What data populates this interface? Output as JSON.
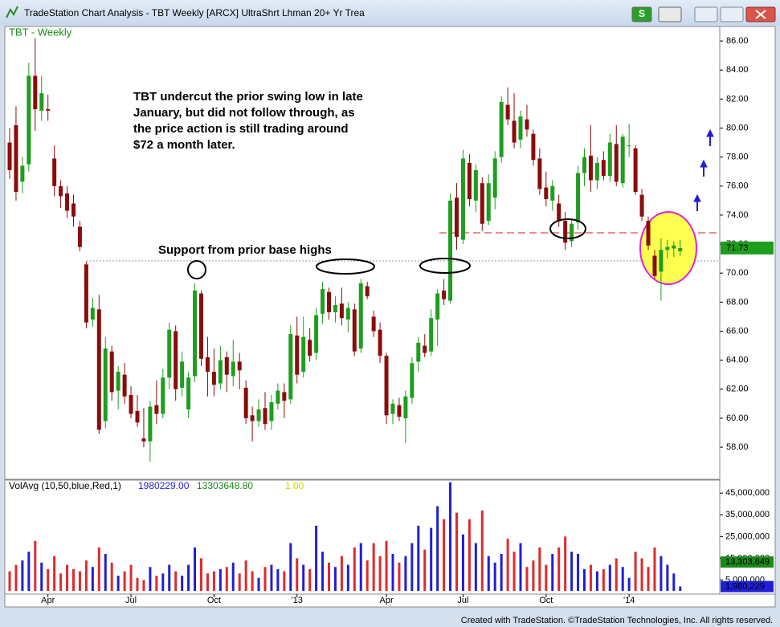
{
  "window": {
    "title": "TradeStation Chart Analysis - TBT Weekly [ARCX] UltraShrt Lhman 20+ Yr Trea",
    "button_s": "S",
    "footer": "Created with TradeStation. ©TradeStation Technologies, Inc. All rights reserved."
  },
  "chart_data": {
    "type": "candlestick",
    "title": "TBT - Weekly",
    "annotations": [
      "TBT undercut the prior swing low in late",
      "January, but did not follow through, as",
      "the price action is still trading around",
      "$72 a month later.",
      "Support from prior base highs"
    ],
    "up_color": "#1e9e1e",
    "down_color": "#8b0c0c",
    "ylim": [
      55.9,
      87.0
    ],
    "yticks": [
      {
        "value": 58,
        "label": "58.00"
      },
      {
        "value": 60,
        "label": "60.00"
      },
      {
        "value": 62,
        "label": "62.00"
      },
      {
        "value": 64,
        "label": "64.00"
      },
      {
        "value": 66,
        "label": "66.00"
      },
      {
        "value": 68,
        "label": "68.00"
      },
      {
        "value": 70,
        "label": "70.00"
      },
      {
        "value": 72,
        "label": "72.00"
      },
      {
        "value": 74,
        "label": "74.00"
      },
      {
        "value": 76,
        "label": "76.00"
      },
      {
        "value": 78,
        "label": "78.00"
      },
      {
        "value": 80,
        "label": "80.00"
      },
      {
        "value": 82,
        "label": "82.00"
      },
      {
        "value": 84,
        "label": "84.00"
      },
      {
        "value": 86,
        "label": "86.00"
      }
    ],
    "xticks": [
      {
        "value": 6,
        "label": "Apr"
      },
      {
        "value": 19,
        "label": "Jul"
      },
      {
        "value": 32,
        "label": "Oct"
      },
      {
        "value": 45,
        "label": "'13"
      },
      {
        "value": 59,
        "label": "Apr"
      },
      {
        "value": 71,
        "label": "Jul"
      },
      {
        "value": 84,
        "label": "Oct"
      },
      {
        "value": 97,
        "label": "'14"
      }
    ],
    "ohlc": [
      [
        79.0,
        80.0,
        76.5,
        77.1
      ],
      [
        80.2,
        81.5,
        75.0,
        75.6
      ],
      [
        76.3,
        78.0,
        75.5,
        77.4
      ],
      [
        77.5,
        84.5,
        77.0,
        83.6
      ],
      [
        83.6,
        86.2,
        79.8,
        81.3
      ],
      [
        81.2,
        83.6,
        80.5,
        82.4
      ],
      [
        81.3,
        82.3,
        80.5,
        81.2
      ],
      [
        77.9,
        78.8,
        75.3,
        76.0
      ],
      [
        76.0,
        76.4,
        74.5,
        75.3
      ],
      [
        75.5,
        76.0,
        73.8,
        74.3
      ],
      [
        74.8,
        75.4,
        73.2,
        73.9
      ],
      [
        73.2,
        73.6,
        71.5,
        71.8
      ],
      [
        70.6,
        70.8,
        66.2,
        66.6
      ],
      [
        66.8,
        68.3,
        66.3,
        67.6
      ],
      [
        67.5,
        68.5,
        58.9,
        59.2
      ],
      [
        59.8,
        65.6,
        59.3,
        64.8
      ],
      [
        64.6,
        65.0,
        61.2,
        61.8
      ],
      [
        61.9,
        63.6,
        60.6,
        63.2
      ],
      [
        63.0,
        63.8,
        61.0,
        61.5
      ],
      [
        61.6,
        62.2,
        60.0,
        60.3
      ],
      [
        60.5,
        61.6,
        59.4,
        59.7
      ],
      [
        58.6,
        60.7,
        58.0,
        58.4
      ],
      [
        58.4,
        61.2,
        57.0,
        60.8
      ],
      [
        60.9,
        62.6,
        59.6,
        60.3
      ],
      [
        60.3,
        63.4,
        60.0,
        62.8
      ],
      [
        62.8,
        66.6,
        62.0,
        66.1
      ],
      [
        66.0,
        66.4,
        61.2,
        62.0
      ],
      [
        62.1,
        64.6,
        61.5,
        63.9
      ],
      [
        60.6,
        63.2,
        60.0,
        62.8
      ],
      [
        62.9,
        69.3,
        62.5,
        68.8
      ],
      [
        68.6,
        68.8,
        63.6,
        64.1
      ],
      [
        64.2,
        65.6,
        61.5,
        63.2
      ],
      [
        63.2,
        64.8,
        61.5,
        62.3
      ],
      [
        62.4,
        65.0,
        62.0,
        64.0
      ],
      [
        64.2,
        64.6,
        61.8,
        63.0
      ],
      [
        62.9,
        65.4,
        62.2,
        63.9
      ],
      [
        63.9,
        64.5,
        62.0,
        63.3
      ],
      [
        62.1,
        62.6,
        59.6,
        60.0
      ],
      [
        60.2,
        60.8,
        58.4,
        59.8
      ],
      [
        59.8,
        61.3,
        59.4,
        60.6
      ],
      [
        60.7,
        61.8,
        59.2,
        59.6
      ],
      [
        59.8,
        61.6,
        59.2,
        61.1
      ],
      [
        61.0,
        62.4,
        60.6,
        61.9
      ],
      [
        61.8,
        62.4,
        60.0,
        61.2
      ],
      [
        61.3,
        66.4,
        61.0,
        65.8
      ],
      [
        65.7,
        67.0,
        62.4,
        63.0
      ],
      [
        63.2,
        67.0,
        62.8,
        65.6
      ],
      [
        65.4,
        66.2,
        63.9,
        64.3
      ],
      [
        64.5,
        67.6,
        64.0,
        67.1
      ],
      [
        67.2,
        69.4,
        66.5,
        68.9
      ],
      [
        68.7,
        69.0,
        66.8,
        67.3
      ],
      [
        67.3,
        68.4,
        66.6,
        67.8
      ],
      [
        67.9,
        69.0,
        66.4,
        66.9
      ],
      [
        66.8,
        68.0,
        65.9,
        67.6
      ],
      [
        67.5,
        67.9,
        64.3,
        64.6
      ],
      [
        64.8,
        69.6,
        64.5,
        69.3
      ],
      [
        69.1,
        69.4,
        68.2,
        68.4
      ],
      [
        67.0,
        67.4,
        65.6,
        66.0
      ],
      [
        66.1,
        66.6,
        63.8,
        64.3
      ],
      [
        64.3,
        64.5,
        59.6,
        60.2
      ],
      [
        60.3,
        61.3,
        59.6,
        61.0
      ],
      [
        60.9,
        61.4,
        59.8,
        60.1
      ],
      [
        60.0,
        61.9,
        58.3,
        61.5
      ],
      [
        61.4,
        64.2,
        61.0,
        63.8
      ],
      [
        63.9,
        65.6,
        63.2,
        65.2
      ],
      [
        65.0,
        65.8,
        64.2,
        64.5
      ],
      [
        64.6,
        67.5,
        64.3,
        66.9
      ],
      [
        66.8,
        68.9,
        65.0,
        68.6
      ],
      [
        68.8,
        69.6,
        67.8,
        68.2
      ],
      [
        68.1,
        75.5,
        67.9,
        75.0
      ],
      [
        75.2,
        76.2,
        71.6,
        72.5
      ],
      [
        72.3,
        78.5,
        72.0,
        77.9
      ],
      [
        77.6,
        78.2,
        74.6,
        75.1
      ],
      [
        75.0,
        77.5,
        74.2,
        77.1
      ],
      [
        76.2,
        76.6,
        72.9,
        73.4
      ],
      [
        73.6,
        76.8,
        73.3,
        76.2
      ],
      [
        75.2,
        78.4,
        74.4,
        77.9
      ],
      [
        78.0,
        82.2,
        77.6,
        81.8
      ],
      [
        81.6,
        82.8,
        80.2,
        80.6
      ],
      [
        80.5,
        82.4,
        78.6,
        79.0
      ],
      [
        79.2,
        81.2,
        78.6,
        80.8
      ],
      [
        80.6,
        81.6,
        79.4,
        79.9
      ],
      [
        79.6,
        79.9,
        77.4,
        77.8
      ],
      [
        77.9,
        78.6,
        75.4,
        75.8
      ],
      [
        75.9,
        77.0,
        74.6,
        75.1
      ],
      [
        75.0,
        76.4,
        74.3,
        76.0
      ],
      [
        74.8,
        75.4,
        73.2,
        73.6
      ],
      [
        73.6,
        74.2,
        71.6,
        72.1
      ],
      [
        72.2,
        73.7,
        71.8,
        73.4
      ],
      [
        73.5,
        77.4,
        73.0,
        76.9
      ],
      [
        76.9,
        78.6,
        76.0,
        78.0
      ],
      [
        78.1,
        80.2,
        75.6,
        76.4
      ],
      [
        76.4,
        78.0,
        75.8,
        77.6
      ],
      [
        77.8,
        78.4,
        76.4,
        76.7
      ],
      [
        76.7,
        79.6,
        76.3,
        79.0
      ],
      [
        78.9,
        80.2,
        76.0,
        76.3
      ],
      [
        76.2,
        79.6,
        75.9,
        79.4
      ],
      [
        78.8,
        80.3,
        78.0,
        78.8
      ],
      [
        78.6,
        78.8,
        75.4,
        75.6
      ],
      [
        75.4,
        75.8,
        73.6,
        73.9
      ],
      [
        73.6,
        73.9,
        71.6,
        71.9
      ],
      [
        71.2,
        71.6,
        69.6,
        69.8
      ],
      [
        70.1,
        72.4,
        68.1,
        71.6
      ],
      [
        71.6,
        72.3,
        71.0,
        71.8
      ],
      [
        71.7,
        72.2,
        71.1,
        71.9
      ],
      [
        71.5,
        72.3,
        71.2,
        71.73
      ]
    ],
    "volume": {
      "up_color": "#1f1fd6",
      "down_color": "#e02a2a",
      "ylim": [
        0,
        51000000
      ],
      "yticks": [
        {
          "value": 5000000,
          "label": "5,000,000"
        },
        {
          "value": 15000000,
          "label": "15,000,000"
        },
        {
          "value": 25000000,
          "label": "25,000,000"
        },
        {
          "value": 35000000,
          "label": "35,000,000"
        },
        {
          "value": 45000000,
          "label": "45,000,000"
        }
      ],
      "values": [
        9000000,
        12000000,
        14000000,
        18000000,
        23000000,
        13000000,
        10000000,
        16000000,
        8000000,
        12000000,
        10000000,
        9000000,
        14000000,
        11000000,
        20000000,
        17000000,
        13000000,
        7000000,
        9000000,
        12000000,
        6000000,
        5000000,
        11000000,
        7000000,
        8000000,
        12000000,
        9000000,
        7000000,
        12000000,
        20000000,
        15000000,
        8000000,
        9000000,
        10000000,
        11000000,
        13000000,
        8000000,
        14000000,
        9000000,
        6000000,
        11000000,
        12000000,
        10000000,
        9000000,
        22000000,
        15000000,
        12000000,
        10000000,
        30000000,
        18000000,
        13000000,
        11000000,
        16000000,
        12000000,
        20000000,
        22000000,
        14000000,
        22000000,
        16000000,
        23000000,
        17000000,
        13000000,
        16000000,
        22000000,
        30000000,
        19000000,
        29000000,
        39000000,
        33000000,
        50000000,
        36000000,
        26000000,
        33000000,
        22000000,
        37000000,
        16000000,
        13000000,
        17000000,
        24000000,
        18000000,
        22000000,
        11000000,
        14000000,
        20000000,
        12000000,
        17000000,
        20000000,
        25000000,
        18000000,
        17000000,
        10000000,
        12000000,
        9000000,
        10000000,
        12000000,
        15000000,
        11000000,
        6000000,
        18000000,
        15000000,
        11000000,
        20000000,
        16000000,
        12000000,
        8000000,
        2000000
      ]
    },
    "indicator": {
      "name": "VolAvg (10,50,blue,Red,1)",
      "values": [
        1980229,
        13303648.8,
        1
      ],
      "value_labels": [
        "1980229.00",
        "13303648.80",
        "1.00"
      ],
      "colors": [
        "#1f1fd6",
        "#1a8a1a",
        "#d6d600"
      ],
      "axis_labels": [
        {
          "value": 13303648.8,
          "label": "13,303,649",
          "color": "#1a8a1a"
        },
        {
          "value": 1980229,
          "label": "1,980,229",
          "color": "#1f1fd6"
        }
      ]
    }
  }
}
